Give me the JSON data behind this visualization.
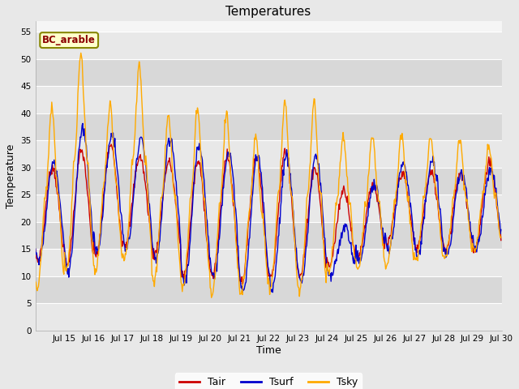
{
  "title": "Temperatures",
  "xlabel": "Time",
  "ylabel": "Temperature",
  "annotation": "BC_arable",
  "ylim": [
    0,
    57
  ],
  "yticks": [
    0,
    5,
    10,
    15,
    20,
    25,
    30,
    35,
    40,
    45,
    50,
    55
  ],
  "xtick_labels": [
    "Jul 15",
    "Jul 16",
    "Jul 17",
    "Jul 18",
    "Jul 19",
    "Jul 20",
    "Jul 21",
    "Jul 22",
    "Jul 23",
    "Jul 24",
    "Jul 25",
    "Jul 26",
    "Jul 27",
    "Jul 28",
    "Jul 29",
    "Jul 30"
  ],
  "color_tair": "#cc0000",
  "color_tsurf": "#0000cc",
  "color_tsky": "#ffaa00",
  "fig_bg": "#e8e8e8",
  "plot_bg": "#f5f5f5",
  "band_light": "#e8e8e8",
  "band_dark": "#d8d8d8",
  "legend_labels": [
    "Tair",
    "Tsurf",
    "Tsky"
  ],
  "n_days": 16,
  "n_points_per_day": 48,
  "tair_min": [
    13,
    12,
    14,
    16,
    14,
    10,
    10,
    9,
    10,
    10,
    12,
    14,
    16,
    15,
    15,
    15
  ],
  "tair_max": [
    30,
    33,
    34,
    32,
    31,
    31,
    32,
    32,
    33,
    30,
    26,
    27,
    29,
    29,
    29,
    31
  ],
  "tsurf_min": [
    13,
    11,
    15,
    15,
    13,
    9,
    10,
    7,
    8,
    9,
    10,
    13,
    15,
    14,
    14,
    15
  ],
  "tsurf_max": [
    31,
    37,
    36,
    35,
    35,
    34,
    33,
    32,
    32,
    32,
    19,
    27,
    31,
    31,
    29,
    30
  ],
  "tsky_min": [
    8,
    11,
    11,
    13,
    9,
    8,
    7,
    7,
    8,
    7,
    11,
    11,
    12,
    13,
    13,
    15
  ],
  "tsky_max": [
    41,
    51,
    42,
    49,
    40,
    41,
    40,
    36,
    42,
    42,
    36,
    36,
    36,
    36,
    35,
    34
  ]
}
